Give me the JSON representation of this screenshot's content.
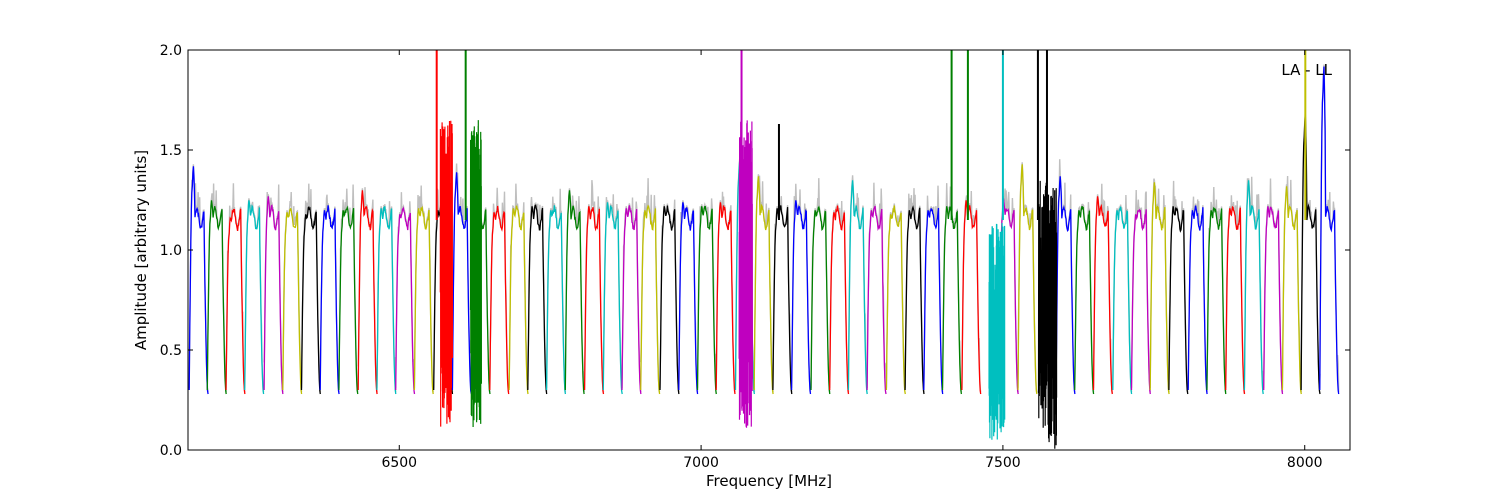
{
  "chart_data": {
    "type": "line",
    "title": "",
    "annotation": "LA - LL",
    "xlabel": "Frequency [MHz]",
    "ylabel": "Amplitude [arbitrary units]",
    "xlim": [
      6150,
      8075
    ],
    "ylim": [
      0.0,
      2.0
    ],
    "xticks": [
      6500,
      7000,
      7500,
      8000
    ],
    "xtick_labels": [
      "6500",
      "7000",
      "7500",
      "8000"
    ],
    "yticks": [
      0.0,
      0.5,
      1.0,
      1.5,
      2.0
    ],
    "ytick_labels": [
      "0.0",
      "0.5",
      "1.0",
      "1.5",
      "2.0"
    ],
    "grid": false,
    "legend": "none",
    "channel_width_mhz": 31.25,
    "background_series_color": "#bfbfbf",
    "series_colors": [
      "#0000ff",
      "#008000",
      "#ff0000",
      "#00bfbf",
      "#bf00bf",
      "#bfbf00",
      "#000000"
    ],
    "channels": [
      {
        "start": 6152,
        "peak": 1.42,
        "color": "#0000ff"
      },
      {
        "start": 6182,
        "peak": 1.25,
        "color": "#008000"
      },
      {
        "start": 6213,
        "peak": 1.16,
        "color": "#ff0000"
      },
      {
        "start": 6244,
        "peak": 1.25,
        "color": "#00bfbf"
      },
      {
        "start": 6276,
        "peak": 1.27,
        "color": "#bf00bf"
      },
      {
        "start": 6307,
        "peak": 1.19,
        "color": "#bfbf00"
      },
      {
        "start": 6338,
        "peak": 1.18,
        "color": "#000000"
      },
      {
        "start": 6369,
        "peak": 1.2,
        "color": "#0000ff"
      },
      {
        "start": 6400,
        "peak": 1.2,
        "color": "#008000"
      },
      {
        "start": 6432,
        "peak": 1.3,
        "color": "#ff0000"
      },
      {
        "start": 6463,
        "peak": 1.21,
        "color": "#00bfbf"
      },
      {
        "start": 6494,
        "peak": 1.18,
        "color": "#bf00bf"
      },
      {
        "start": 6525,
        "peak": 1.21,
        "color": "#bfbf00"
      },
      {
        "start": 6557,
        "peak": 1.2,
        "color": "#000000"
      },
      {
        "start": 6588,
        "peak": 1.39,
        "color": "#0000ff"
      },
      {
        "start": 6619,
        "peak": 1.4,
        "color": "#008000"
      },
      {
        "start": 6650,
        "peak": 1.19,
        "color": "#ff0000"
      },
      {
        "start": 6682,
        "peak": 1.21,
        "color": "#bfbf00"
      },
      {
        "start": 6713,
        "peak": 1.22,
        "color": "#000000"
      },
      {
        "start": 6744,
        "peak": 1.2,
        "color": "#00bfbf"
      },
      {
        "start": 6775,
        "peak": 1.3,
        "color": "#008000"
      },
      {
        "start": 6807,
        "peak": 1.22,
        "color": "#ff0000"
      },
      {
        "start": 6838,
        "peak": 1.24,
        "color": "#00bfbf"
      },
      {
        "start": 6869,
        "peak": 1.21,
        "color": "#bf00bf"
      },
      {
        "start": 6900,
        "peak": 1.2,
        "color": "#bfbf00"
      },
      {
        "start": 6932,
        "peak": 1.22,
        "color": "#000000"
      },
      {
        "start": 6963,
        "peak": 1.24,
        "color": "#0000ff"
      },
      {
        "start": 6994,
        "peak": 1.22,
        "color": "#008000"
      },
      {
        "start": 7025,
        "peak": 1.24,
        "color": "#ff0000"
      },
      {
        "start": 7057,
        "peak": 1.45,
        "color": "#00bfbf"
      },
      {
        "start": 7088,
        "peak": 1.37,
        "color": "#bfbf00"
      },
      {
        "start": 7119,
        "peak": 1.21,
        "color": "#000000"
      },
      {
        "start": 7150,
        "peak": 1.25,
        "color": "#0000ff"
      },
      {
        "start": 7182,
        "peak": 1.2,
        "color": "#008000"
      },
      {
        "start": 7213,
        "peak": 1.19,
        "color": "#ff0000"
      },
      {
        "start": 7244,
        "peak": 1.35,
        "color": "#00bfbf"
      },
      {
        "start": 7275,
        "peak": 1.2,
        "color": "#bf00bf"
      },
      {
        "start": 7307,
        "peak": 1.18,
        "color": "#bfbf00"
      },
      {
        "start": 7338,
        "peak": 1.2,
        "color": "#000000"
      },
      {
        "start": 7369,
        "peak": 1.2,
        "color": "#0000ff"
      },
      {
        "start": 7400,
        "peak": 1.22,
        "color": "#008000"
      },
      {
        "start": 7432,
        "peak": 1.25,
        "color": "#ff0000"
      },
      {
        "start": 7494,
        "peak": 1.26,
        "color": "#bf00bf"
      },
      {
        "start": 7525,
        "peak": 1.43,
        "color": "#bfbf00"
      },
      {
        "start": 7588,
        "peak": 1.37,
        "color": "#0000ff"
      },
      {
        "start": 7619,
        "peak": 1.2,
        "color": "#008000"
      },
      {
        "start": 7650,
        "peak": 1.27,
        "color": "#ff0000"
      },
      {
        "start": 7682,
        "peak": 1.2,
        "color": "#00bfbf"
      },
      {
        "start": 7713,
        "peak": 1.18,
        "color": "#bf00bf"
      },
      {
        "start": 7744,
        "peak": 1.34,
        "color": "#bfbf00"
      },
      {
        "start": 7775,
        "peak": 1.22,
        "color": "#000000"
      },
      {
        "start": 7807,
        "peak": 1.2,
        "color": "#0000ff"
      },
      {
        "start": 7838,
        "peak": 1.2,
        "color": "#008000"
      },
      {
        "start": 7869,
        "peak": 1.21,
        "color": "#ff0000"
      },
      {
        "start": 7900,
        "peak": 1.35,
        "color": "#00bfbf"
      },
      {
        "start": 7932,
        "peak": 1.22,
        "color": "#bf00bf"
      },
      {
        "start": 7963,
        "peak": 1.32,
        "color": "#bfbf00"
      },
      {
        "start": 7994,
        "peak": 1.68,
        "color": "#000000"
      },
      {
        "start": 8025,
        "peak": 1.92,
        "color": "#0000ff"
      }
    ],
    "rfi_regions": [
      {
        "center": 6578,
        "width": 20,
        "min": 0.1,
        "max": 1.65,
        "color": "#ff0000"
      },
      {
        "center": 6627,
        "width": 18,
        "min": 0.1,
        "max": 1.65,
        "color": "#008000"
      },
      {
        "center": 7074,
        "width": 22,
        "min": 0.1,
        "max": 1.65,
        "color": "#bf00bf"
      },
      {
        "center": 7490,
        "width": 26,
        "min": 0.05,
        "max": 1.15,
        "color": "#00bfbf"
      },
      {
        "center": 7574,
        "width": 30,
        "min": 0.0,
        "max": 1.35,
        "color": "#000000"
      }
    ],
    "spikes": [
      {
        "x": 6562,
        "top": 2.0,
        "color": "#ff0000"
      },
      {
        "x": 6610,
        "top": 2.0,
        "color": "#008000"
      },
      {
        "x": 7067,
        "top": 2.0,
        "color": "#bf00bf"
      },
      {
        "x": 7129,
        "top": 1.63,
        "color": "#000000"
      },
      {
        "x": 7415,
        "top": 2.0,
        "color": "#008000"
      },
      {
        "x": 7442,
        "top": 2.0,
        "color": "#008000"
      },
      {
        "x": 7500,
        "top": 2.0,
        "color": "#00bfbf"
      },
      {
        "x": 7558,
        "top": 2.0,
        "color": "#000000"
      },
      {
        "x": 7573,
        "top": 2.0,
        "color": "#000000"
      },
      {
        "x": 8001,
        "top": 2.0,
        "color": "#bfbf00"
      }
    ]
  }
}
